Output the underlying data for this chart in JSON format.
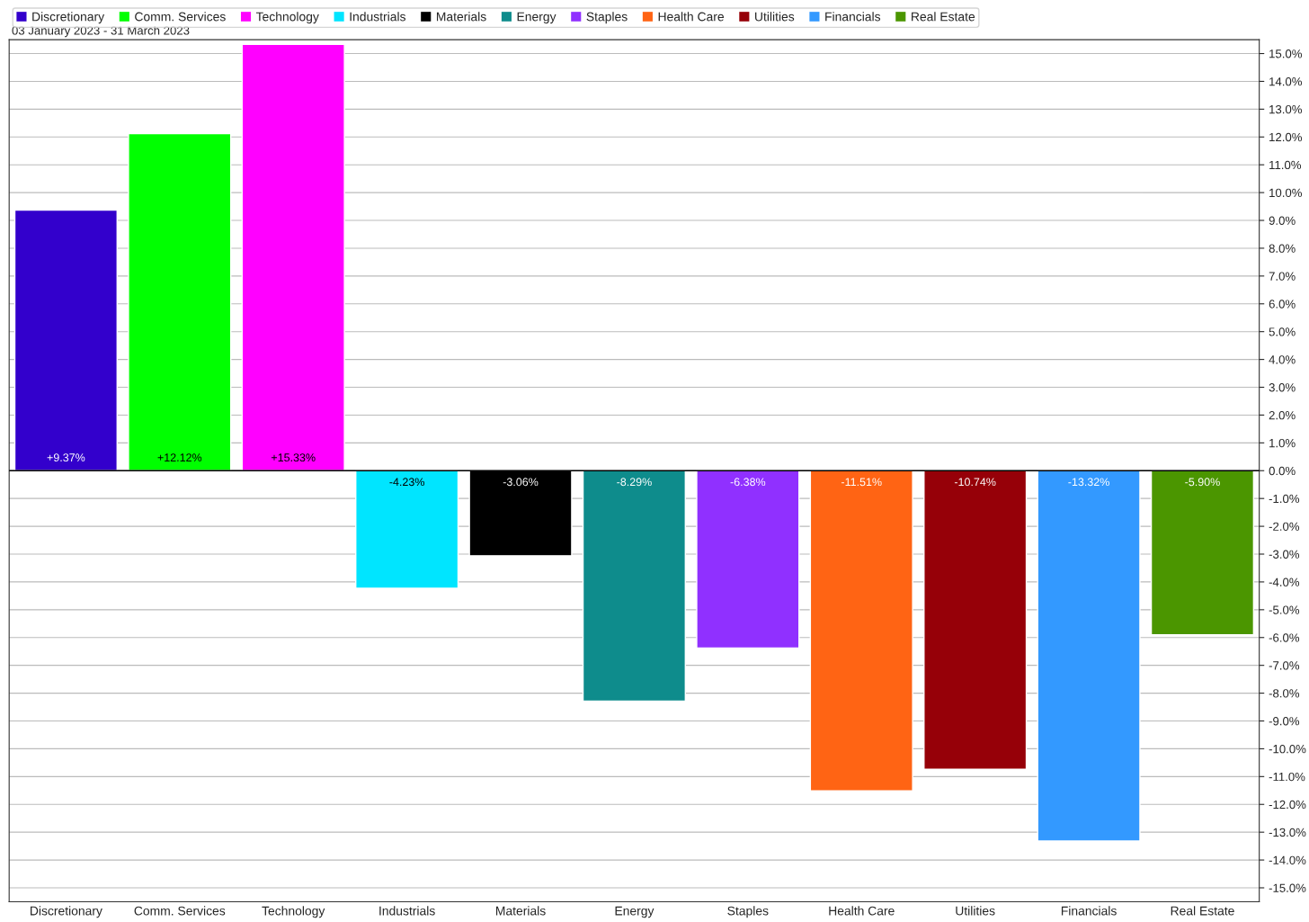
{
  "chart_data": {
    "type": "bar",
    "subtitle": "03 January 2023 - 31 March 2023",
    "categories": [
      "Discretionary",
      "Comm. Services",
      "Technology",
      "Industrials",
      "Materials",
      "Energy",
      "Staples",
      "Health Care",
      "Utilities",
      "Financials",
      "Real Estate"
    ],
    "stacked": true,
    "series": [
      {
        "name": "Discretionary",
        "color": "#3300cc",
        "values": [
          9.37,
          null,
          null,
          null,
          null,
          null,
          null,
          null,
          null,
          null,
          null
        ],
        "value_labels": [
          "+9.37%",
          null,
          null,
          null,
          null,
          null,
          null,
          null,
          null,
          null,
          null
        ]
      },
      {
        "name": "Comm. Services",
        "color": "#00ff00",
        "values": [
          null,
          12.12,
          null,
          null,
          null,
          null,
          null,
          null,
          null,
          null,
          null
        ],
        "value_labels": [
          null,
          "+12.12%",
          null,
          null,
          null,
          null,
          null,
          null,
          null,
          null,
          null
        ]
      },
      {
        "name": "Technology",
        "color": "#ff00ff",
        "values": [
          null,
          null,
          15.33,
          null,
          null,
          null,
          null,
          null,
          null,
          null,
          null
        ],
        "value_labels": [
          null,
          null,
          "+15.33%",
          null,
          null,
          null,
          null,
          null,
          null,
          null,
          null
        ]
      },
      {
        "name": "Industrials",
        "color": "#00e5ff",
        "values": [
          null,
          null,
          null,
          -4.23,
          null,
          null,
          null,
          null,
          null,
          null,
          null
        ],
        "value_labels": [
          null,
          null,
          null,
          "-4.23%",
          null,
          null,
          null,
          null,
          null,
          null,
          null
        ]
      },
      {
        "name": "Materials",
        "color": "#000000",
        "values": [
          null,
          null,
          null,
          null,
          -3.06,
          null,
          null,
          null,
          null,
          null,
          null
        ],
        "value_labels": [
          null,
          null,
          null,
          null,
          "-3.06%",
          null,
          null,
          null,
          null,
          null,
          null
        ]
      },
      {
        "name": "Energy",
        "color": "#0e8c8c",
        "values": [
          null,
          null,
          null,
          null,
          null,
          -8.29,
          null,
          null,
          null,
          null,
          null
        ],
        "value_labels": [
          null,
          null,
          null,
          null,
          null,
          "-8.29%",
          null,
          null,
          null,
          null,
          null
        ]
      },
      {
        "name": "Staples",
        "color": "#9030ff",
        "values": [
          null,
          null,
          null,
          null,
          null,
          null,
          -6.38,
          null,
          null,
          null,
          null
        ],
        "value_labels": [
          null,
          null,
          null,
          null,
          null,
          null,
          "-6.38%",
          null,
          null,
          null,
          null
        ]
      },
      {
        "name": "Health Care",
        "color": "#ff6414",
        "values": [
          null,
          null,
          null,
          null,
          null,
          null,
          null,
          -11.51,
          null,
          null,
          null
        ],
        "value_labels": [
          null,
          null,
          null,
          null,
          null,
          null,
          null,
          "-11.51%",
          null,
          null,
          null
        ]
      },
      {
        "name": "Utilities",
        "color": "#960008",
        "values": [
          null,
          null,
          null,
          null,
          null,
          null,
          null,
          null,
          -10.74,
          null,
          null
        ],
        "value_labels": [
          null,
          null,
          null,
          null,
          null,
          null,
          null,
          null,
          "-10.74%",
          null,
          null
        ]
      },
      {
        "name": "Financials",
        "color": "#3399ff",
        "values": [
          null,
          null,
          null,
          null,
          null,
          null,
          null,
          null,
          null,
          -13.32,
          null
        ],
        "value_labels": [
          null,
          null,
          null,
          null,
          null,
          null,
          null,
          null,
          null,
          "-13.32%",
          null
        ]
      },
      {
        "name": "Real Estate",
        "color": "#4b9600",
        "values": [
          null,
          null,
          null,
          null,
          null,
          null,
          null,
          null,
          null,
          null,
          -5.9
        ],
        "value_labels": [
          null,
          null,
          null,
          null,
          null,
          null,
          null,
          null,
          null,
          null,
          "-5.90%"
        ]
      }
    ],
    "ylim": [
      -15.5,
      15.5
    ],
    "yticks": [
      {
        "value": -15,
        "label": "-15.0%"
      },
      {
        "value": -14,
        "label": "-14.0%"
      },
      {
        "value": -13,
        "label": "-13.0%"
      },
      {
        "value": -12,
        "label": "-12.0%"
      },
      {
        "value": -11,
        "label": "-11.0%"
      },
      {
        "value": -10,
        "label": "-10.0%"
      },
      {
        "value": -9,
        "label": "-9.0%"
      },
      {
        "value": -8,
        "label": "-8.0%"
      },
      {
        "value": -7,
        "label": "-7.0%"
      },
      {
        "value": -6,
        "label": "-6.0%"
      },
      {
        "value": -5,
        "label": "-5.0%"
      },
      {
        "value": -4,
        "label": "-4.0%"
      },
      {
        "value": -3,
        "label": "-3.0%"
      },
      {
        "value": -2,
        "label": "-2.0%"
      },
      {
        "value": -1,
        "label": "-1.0%"
      },
      {
        "value": 0,
        "label": "0.0%"
      },
      {
        "value": 1,
        "label": "1.0%"
      },
      {
        "value": 2,
        "label": "2.0%"
      },
      {
        "value": 3,
        "label": "3.0%"
      },
      {
        "value": 4,
        "label": "4.0%"
      },
      {
        "value": 5,
        "label": "5.0%"
      },
      {
        "value": 6,
        "label": "6.0%"
      },
      {
        "value": 7,
        "label": "7.0%"
      },
      {
        "value": 8,
        "label": "8.0%"
      },
      {
        "value": 9,
        "label": "9.0%"
      },
      {
        "value": 10,
        "label": "10.0%"
      },
      {
        "value": 11,
        "label": "11.0%"
      },
      {
        "value": 12,
        "label": "12.0%"
      },
      {
        "value": 13,
        "label": "13.0%"
      },
      {
        "value": 14,
        "label": "14.0%"
      },
      {
        "value": 15,
        "label": "15.0%"
      }
    ],
    "grid": "y",
    "legend": "top"
  }
}
